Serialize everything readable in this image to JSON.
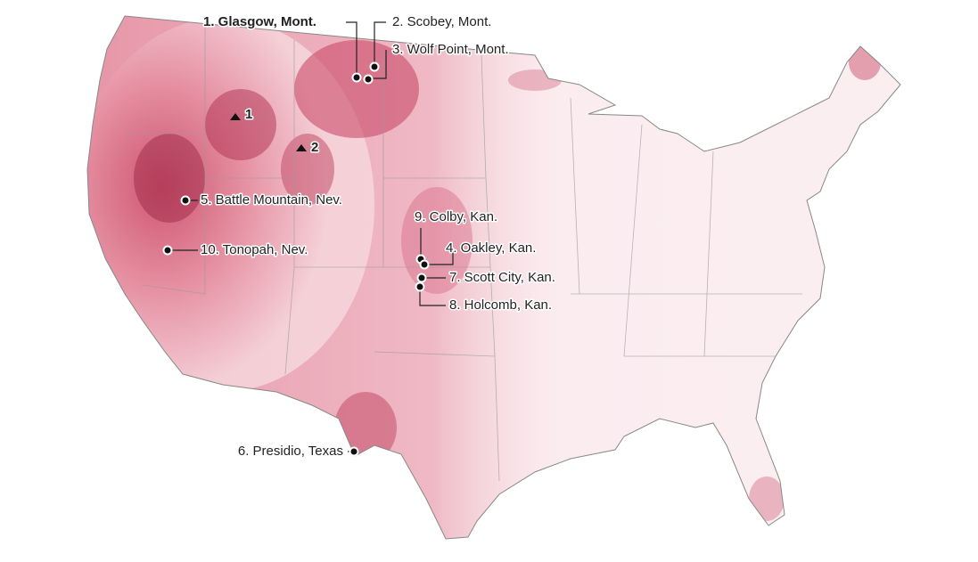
{
  "labels": {
    "glasgow": "1. Glasgow, Mont.",
    "scobey": "2. Scobey, Mont.",
    "wolf_point": "3. Wolf Point, Mont.",
    "oakley": "4. Oakley, Kan.",
    "battle_mountain": "5. Battle Mountain, Nev.",
    "presidio": "6. Presidio, Texas",
    "scott_city": "7. Scott City, Kan.",
    "holcomb": "8. Holcomb, Kan.",
    "colby": "9. Colby, Kan.",
    "tonopah": "10. Tonopah, Nev."
  },
  "peaks": [
    "1",
    "2"
  ]
}
